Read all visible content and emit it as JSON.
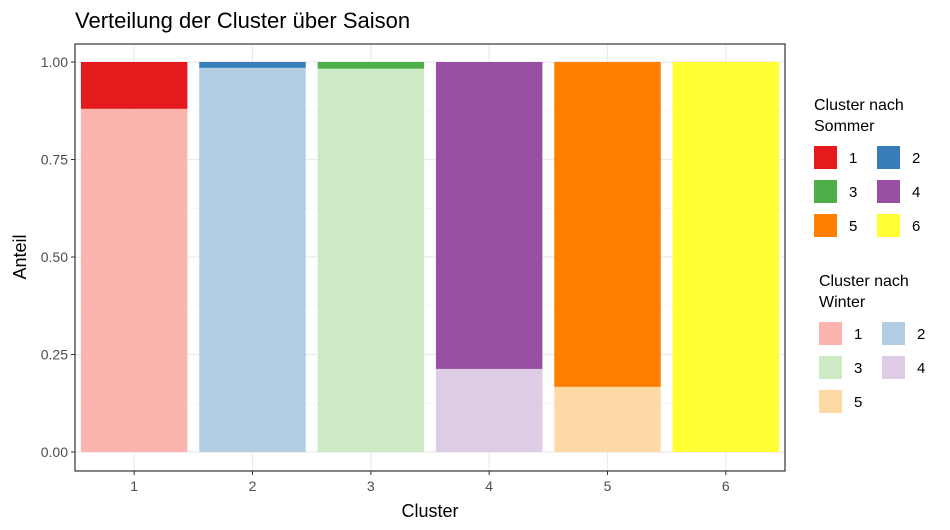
{
  "chart_data": {
    "type": "bar",
    "stacked": true,
    "title": "Verteilung der Cluster über Saison",
    "xlabel": "Cluster",
    "ylabel": "Anteil",
    "categories": [
      "1",
      "2",
      "3",
      "4",
      "5",
      "6"
    ],
    "ylim": [
      0,
      1
    ],
    "yticks": [
      0,
      0.25,
      0.5,
      0.75,
      1
    ],
    "ytick_labels": [
      "0.00",
      "0.25",
      "0.50",
      "0.75",
      "1.00"
    ],
    "grid": true,
    "legend_position": "right",
    "series": [
      {
        "group": "winter",
        "label": "1",
        "color": "#FBB4AE",
        "values": [
          0.88,
          0,
          0,
          0,
          0,
          0
        ]
      },
      {
        "group": "winter",
        "label": "2",
        "color": "#B3CDE3",
        "values": [
          0,
          0.985,
          0,
          0,
          0,
          0
        ]
      },
      {
        "group": "winter",
        "label": "3",
        "color": "#CCEBC5",
        "values": [
          0,
          0,
          0.983,
          0,
          0,
          0
        ]
      },
      {
        "group": "winter",
        "label": "4",
        "color": "#DECBE4",
        "values": [
          0,
          0,
          0,
          0.213,
          0,
          0
        ]
      },
      {
        "group": "winter",
        "label": "5",
        "color": "#FED9A6",
        "values": [
          0,
          0,
          0,
          0,
          0.167,
          0
        ]
      },
      {
        "group": "summer",
        "label": "1",
        "color": "#E41A1C",
        "values": [
          0.12,
          0,
          0,
          0,
          0,
          0
        ]
      },
      {
        "group": "summer",
        "label": "2",
        "color": "#377EB8",
        "values": [
          0,
          0.015,
          0,
          0,
          0,
          0
        ]
      },
      {
        "group": "summer",
        "label": "3",
        "color": "#4DAF4A",
        "values": [
          0,
          0,
          0.017,
          0,
          0,
          0
        ]
      },
      {
        "group": "summer",
        "label": "4",
        "color": "#984EA3",
        "values": [
          0,
          0,
          0,
          0.787,
          0,
          0
        ]
      },
      {
        "group": "summer",
        "label": "5",
        "color": "#FF7F00",
        "values": [
          0,
          0,
          0,
          0,
          0.833,
          0
        ]
      },
      {
        "group": "summer",
        "label": "6",
        "color": "#FFFF33",
        "values": [
          0,
          0,
          0,
          0,
          0,
          1.0
        ]
      }
    ],
    "legends": [
      {
        "title_lines": [
          "Cluster nach",
          "Sommer"
        ],
        "items": [
          {
            "label": "1",
            "color": "#E41A1C"
          },
          {
            "label": "2",
            "color": "#377EB8"
          },
          {
            "label": "3",
            "color": "#4DAF4A"
          },
          {
            "label": "4",
            "color": "#984EA3"
          },
          {
            "label": "5",
            "color": "#FF7F00"
          },
          {
            "label": "6",
            "color": "#FFFF33"
          }
        ]
      },
      {
        "title_lines": [
          "Cluster nach",
          "Winter"
        ],
        "items": [
          {
            "label": "1",
            "color": "#FBB4AE"
          },
          {
            "label": "2",
            "color": "#B3CDE3"
          },
          {
            "label": "3",
            "color": "#CCEBC5"
          },
          {
            "label": "4",
            "color": "#DECBE4"
          },
          {
            "label": "5",
            "color": "#FED9A6"
          }
        ]
      }
    ]
  }
}
